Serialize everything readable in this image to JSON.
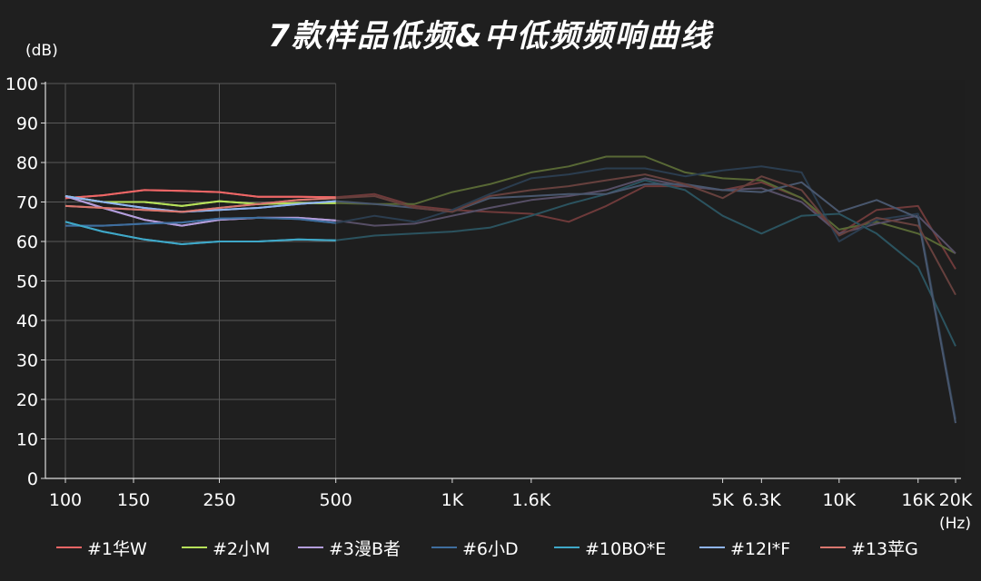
{
  "chart_data": {
    "type": "line",
    "title": "7款样品低频&中低频频响曲线",
    "ylabel": "(dB)",
    "xlabel": "(Hz)",
    "xscale": "log",
    "xlim": [
      100,
      20000
    ],
    "ylim": [
      0,
      100
    ],
    "x_ticks": [
      {
        "value": 100,
        "label": "100"
      },
      {
        "value": 150,
        "label": "150"
      },
      {
        "value": 250,
        "label": "250"
      },
      {
        "value": 500,
        "label": "500"
      },
      {
        "value": 1000,
        "label": "1K"
      },
      {
        "value": 1600,
        "label": "1.6K"
      },
      {
        "value": 5000,
        "label": "5K"
      },
      {
        "value": 6300,
        "label": "6.3K"
      },
      {
        "value": 10000,
        "label": "10K"
      },
      {
        "value": 16000,
        "label": "16K"
      },
      {
        "value": 20000,
        "label": "20K"
      }
    ],
    "y_ticks": [
      0,
      10,
      20,
      30,
      40,
      50,
      60,
      70,
      80,
      90,
      100
    ],
    "grid": true,
    "highlight_range_hz": [
      100,
      500
    ],
    "legend_position": "bottom",
    "x": [
      100,
      125,
      160,
      200,
      250,
      315,
      400,
      500,
      630,
      800,
      1000,
      1250,
      1600,
      2000,
      2500,
      3150,
      4000,
      5000,
      6300,
      8000,
      10000,
      12500,
      16000,
      20000
    ],
    "series": [
      {
        "name": "#1华W",
        "color": "#ee6666",
        "values": [
          71,
          71.7,
          73,
          72.8,
          72.5,
          71.3,
          71.3,
          71.2,
          72,
          69,
          68,
          67.5,
          67,
          65,
          69,
          74,
          74,
          73,
          75,
          71,
          62,
          68,
          69,
          53
        ]
      },
      {
        "name": "#2小M",
        "color": "#b6e05a",
        "values": [
          71.5,
          70,
          70,
          69,
          70.2,
          69.5,
          69.7,
          69.7,
          69.5,
          69.5,
          72.5,
          74.5,
          77.5,
          79,
          81.5,
          81.5,
          77.5,
          76,
          75.5,
          71,
          63,
          65,
          62,
          57
        ]
      },
      {
        "name": "#3漫B者",
        "color": "#b39ddb",
        "values": [
          71.5,
          68.5,
          65.5,
          64,
          65.5,
          66,
          66,
          65.3,
          64,
          64.5,
          66.5,
          68.5,
          70.5,
          71.5,
          73,
          76,
          74,
          73,
          73.5,
          70,
          62,
          64.5,
          66.5,
          57
        ]
      },
      {
        "name": "#6小D",
        "color": "#3f6e9e",
        "values": [
          64,
          64,
          64.5,
          64.8,
          65.8,
          66,
          65.7,
          64.7,
          66.5,
          65,
          68,
          72,
          76,
          77,
          78.5,
          78.5,
          76.5,
          78,
          79,
          77.5,
          60,
          65.5,
          67,
          15
        ]
      },
      {
        "name": "#10BO*E",
        "color": "#3fa8c8",
        "values": [
          65,
          62.5,
          60.5,
          59.3,
          60,
          60,
          60.5,
          60.3,
          61.5,
          62,
          62.5,
          63.5,
          66.5,
          69.5,
          72,
          75.5,
          73,
          66.5,
          62,
          66.5,
          67,
          62,
          53.5,
          33.5
        ]
      },
      {
        "name": "#12I*F",
        "color": "#8fb4f0",
        "values": [
          71.5,
          70,
          68.5,
          67.5,
          68,
          68.5,
          69.5,
          70.2,
          69.5,
          68.5,
          67.5,
          71,
          71.5,
          72,
          72,
          74.5,
          74.5,
          73,
          72.5,
          75,
          67.5,
          70.5,
          66,
          14
        ]
      },
      {
        "name": "#13苹G",
        "color": "#d9776f",
        "values": [
          69,
          68.5,
          68,
          67.5,
          68.5,
          69.5,
          70.5,
          71,
          71.5,
          68.5,
          67.5,
          71.5,
          73,
          74,
          75.5,
          77,
          74.5,
          71,
          76.5,
          73,
          61.5,
          66,
          64,
          46.5
        ]
      }
    ]
  }
}
